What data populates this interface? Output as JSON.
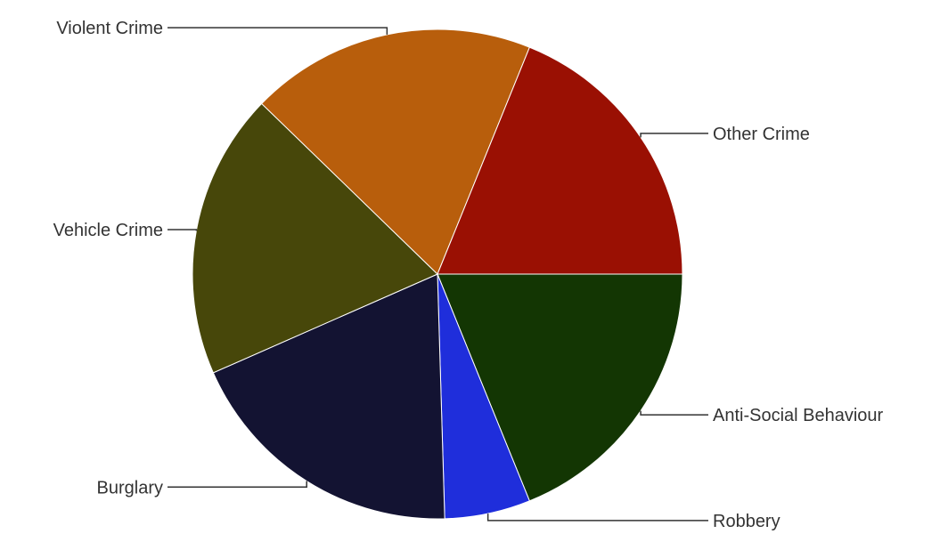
{
  "chart_data": {
    "type": "pie",
    "title": "",
    "start": "3 o'clock, clockwise",
    "slices": [
      {
        "label": "Anti-Social Behaviour",
        "value": 10,
        "color": "#133603"
      },
      {
        "label": "Robbery",
        "value": 3,
        "color": "#1f2edb"
      },
      {
        "label": "Burglary",
        "value": 10,
        "color": "#131332"
      },
      {
        "label": "Vehicle Crime",
        "value": 10,
        "color": "#47470a"
      },
      {
        "label": "Violent Crime",
        "value": 10,
        "color": "#b85e0c"
      },
      {
        "label": "Other Crime",
        "value": 10,
        "color": "#9a1003"
      }
    ]
  }
}
